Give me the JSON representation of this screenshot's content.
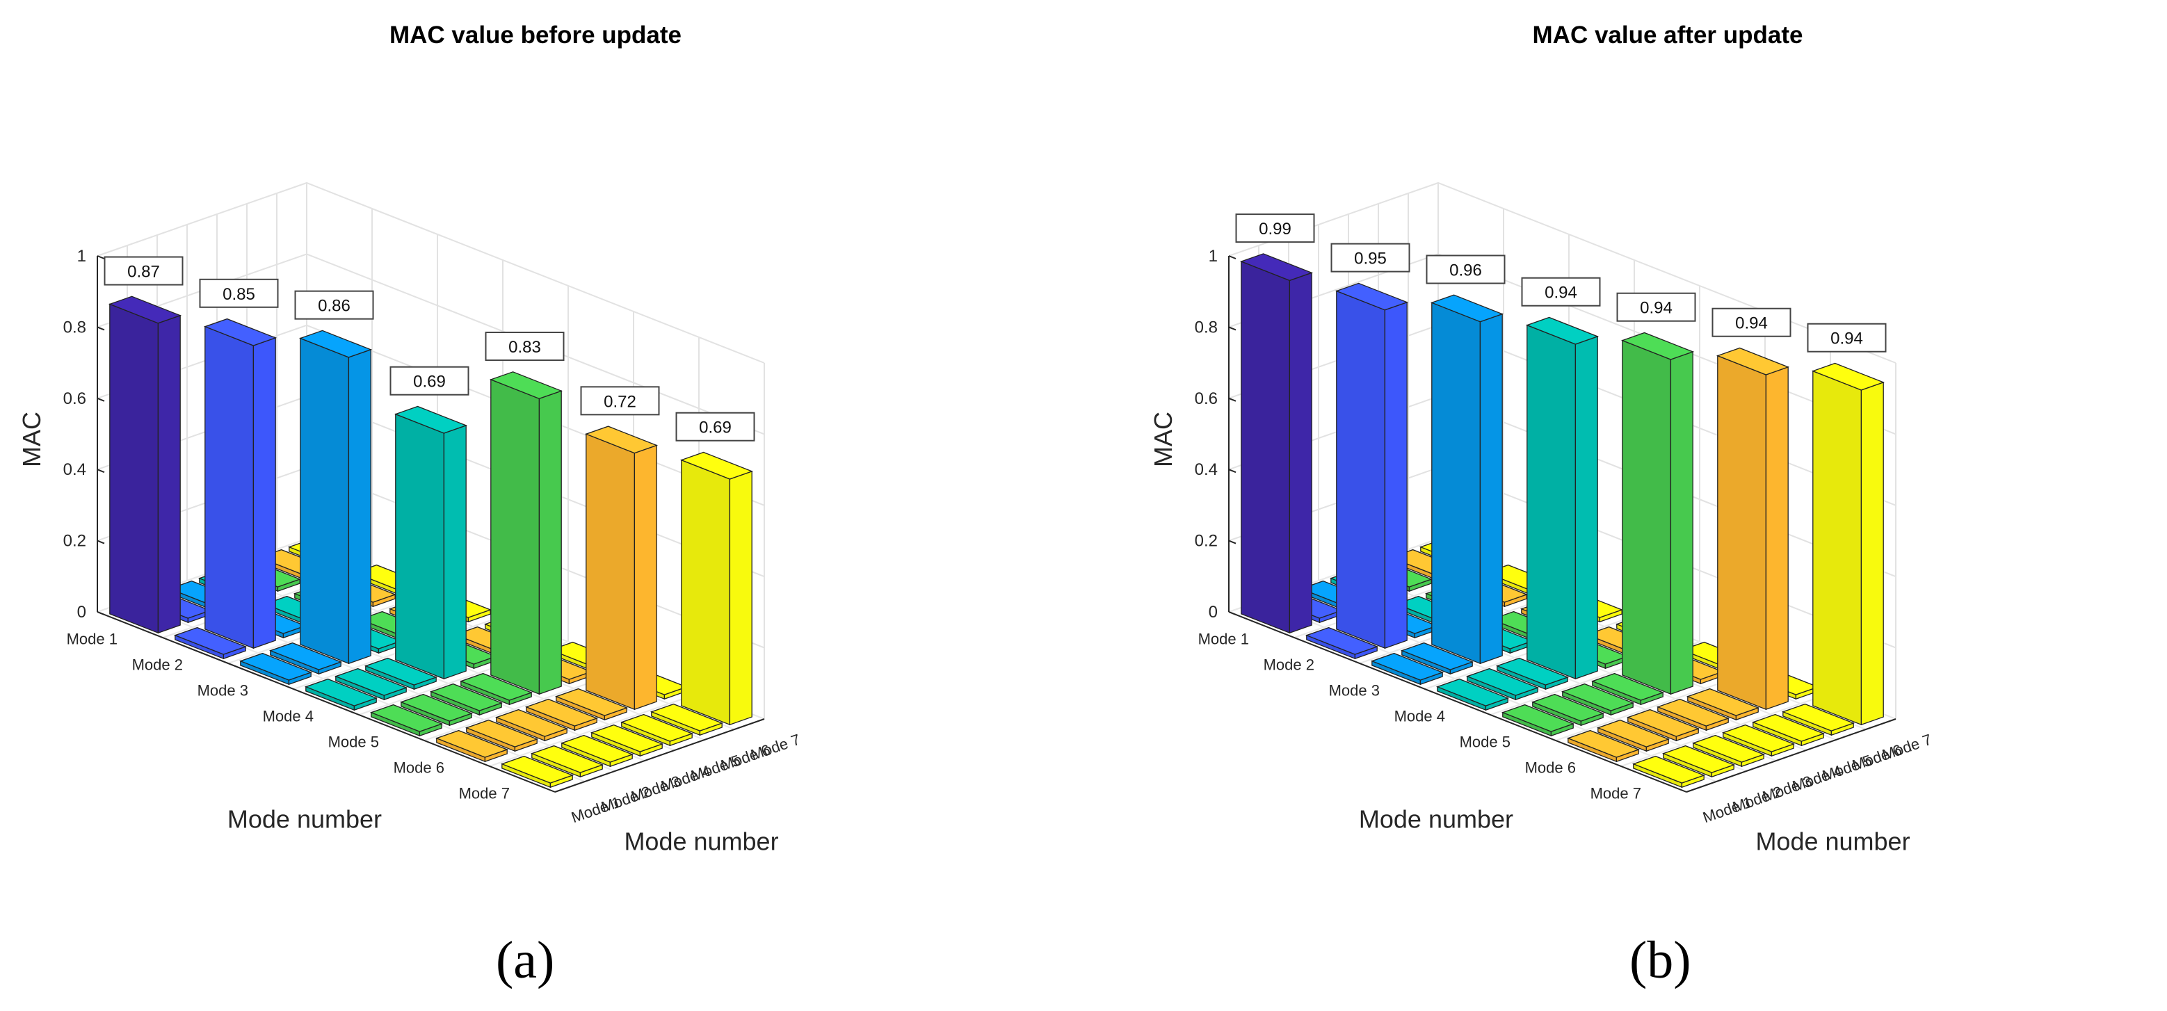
{
  "chart_data": [
    {
      "type": "bar3d",
      "title": "MAC value before update",
      "xlabel": "Mode number",
      "ylabel": "Mode number",
      "zlabel": "MAC",
      "zlim": [
        0,
        1
      ],
      "ztick_labels": [
        "0",
        "0.2",
        "0.4",
        "0.6",
        "0.8",
        "1"
      ],
      "x_categories": [
        "Mode 1",
        "Mode 2",
        "Mode 3",
        "Mode 4",
        "Mode 5",
        "Mode 6",
        "Mode 7"
      ],
      "y_categories": [
        "Mode 1",
        "Mode 2",
        "Mode 3",
        "Mode 4",
        "Mode 5",
        "Mode 6",
        "Mode 7"
      ],
      "diagonal_values": [
        0.87,
        0.85,
        0.86,
        0.69,
        0.83,
        0.72,
        0.69
      ],
      "data_labels": [
        "0.87",
        "0.85",
        "0.86",
        "0.69",
        "0.83",
        "0.72",
        "0.69"
      ],
      "grid": true
    },
    {
      "type": "bar3d",
      "title": "MAC value after update",
      "xlabel": "Mode number",
      "ylabel": "Mode number",
      "zlabel": "MAC",
      "zlim": [
        0,
        1
      ],
      "ztick_labels": [
        "0",
        "0.2",
        "0.4",
        "0.6",
        "0.8",
        "1"
      ],
      "x_categories": [
        "Mode 1",
        "Mode 2",
        "Mode 3",
        "Mode 4",
        "Mode 5",
        "Mode 6",
        "Mode 7"
      ],
      "y_categories": [
        "Mode 1",
        "Mode 2",
        "Mode 3",
        "Mode 4",
        "Mode 5",
        "Mode 6",
        "Mode 7"
      ],
      "diagonal_values": [
        0.99,
        0.95,
        0.96,
        0.94,
        0.94,
        0.94,
        0.94
      ],
      "data_labels": [
        "0.99",
        "0.95",
        "0.96",
        "0.94",
        "0.94",
        "0.94",
        "0.94"
      ],
      "grid": true
    }
  ],
  "colors": [
    "#3e26a8",
    "#3d57fb",
    "#0595e6",
    "#00bdb0",
    "#47c94e",
    "#fdb62e",
    "#f8fa0d"
  ],
  "captions": [
    "(a)",
    "(b)"
  ]
}
